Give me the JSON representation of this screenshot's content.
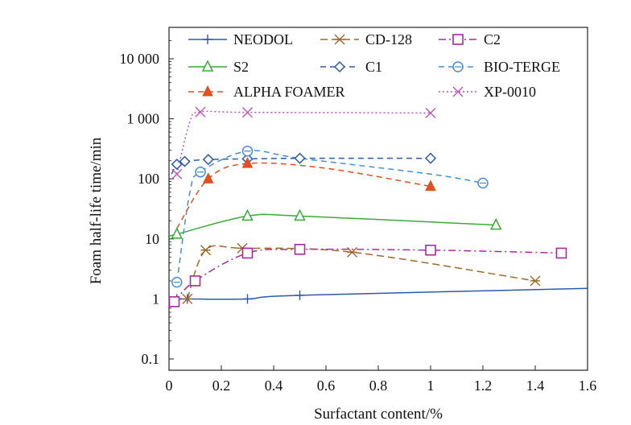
{
  "chart_data": {
    "type": "line",
    "title": "",
    "xlabel": "Surfactant content/%",
    "ylabel": "Foam half-life time/min",
    "xlim": [
      0,
      1.6
    ],
    "ylim": [
      0.1,
      30000
    ],
    "yscale": "log",
    "grid": false,
    "legend_position": "top",
    "x_ticks": [
      "0",
      "0.2",
      "0.4",
      "0.6",
      "0.8",
      "1",
      "1.2",
      "1.4",
      "1.6"
    ],
    "y_ticks": [
      "0.1",
      "1",
      "10",
      "100",
      "1 000",
      "10 000"
    ],
    "y_tick_values": [
      0.1,
      1,
      10,
      100,
      1000,
      10000
    ],
    "series": [
      {
        "name": "NEODOL",
        "color": "#2d5aa8",
        "dash": "solid",
        "marker": "plus",
        "x": [
          0.03,
          0.07,
          0.3,
          0.5
        ],
        "y": [
          1.0,
          1.0,
          1.0,
          1.15
        ],
        "curve_x": [
          0.03,
          0.07,
          0.3,
          0.5,
          1.6
        ],
        "curve_y": [
          1.0,
          1.0,
          1.0,
          1.15,
          1.5
        ]
      },
      {
        "name": "CD-128",
        "color": "#9a6a2c",
        "dash": "longdash",
        "marker": "asterisk",
        "x": [
          0.07,
          0.14,
          0.28,
          0.7,
          1.4
        ],
        "y": [
          1.0,
          6.5,
          7.0,
          6.0,
          2.0
        ],
        "curve_x": [
          0.07,
          0.14,
          0.28,
          0.7,
          1.4
        ],
        "curve_y": [
          1.0,
          6.5,
          7.0,
          6.0,
          2.0
        ]
      },
      {
        "name": "C2",
        "color": "#a52a9a",
        "dash": "dashdot",
        "marker": "square",
        "x": [
          0.02,
          0.1,
          0.3,
          0.5,
          1.0,
          1.5
        ],
        "y": [
          0.9,
          2.0,
          5.8,
          6.7,
          6.5,
          5.8
        ],
        "curve_x": [
          0.02,
          0.1,
          0.3,
          0.5,
          1.0,
          1.5
        ],
        "curve_y": [
          0.9,
          2.0,
          5.8,
          6.7,
          6.5,
          5.8
        ]
      },
      {
        "name": "S2",
        "color": "#3aaa3a",
        "dash": "solid",
        "marker": "triangle",
        "x": [
          0.03,
          0.3,
          0.5,
          1.25
        ],
        "y": [
          12,
          24,
          24,
          17
        ],
        "curve_x": [
          0.0,
          0.03,
          0.3,
          0.5,
          1.25
        ],
        "curve_y": [
          11,
          12,
          24,
          24,
          17
        ]
      },
      {
        "name": "C1",
        "color": "#2d5aa8",
        "dash": "dash",
        "marker": "diamond",
        "x": [
          0.03,
          0.06,
          0.15,
          0.3,
          0.5,
          1.0
        ],
        "y": [
          175,
          195,
          210,
          215,
          220,
          220
        ],
        "curve_x": [
          0.01,
          0.03,
          0.06,
          0.15,
          0.3,
          0.5,
          1.0
        ],
        "curve_y": [
          120,
          175,
          195,
          210,
          215,
          220,
          220
        ]
      },
      {
        "name": "BIO-TERGE",
        "color": "#4a8fd0",
        "dash": "dash",
        "marker": "circle",
        "x": [
          0.03,
          0.12,
          0.3,
          1.2
        ],
        "y": [
          1.9,
          130,
          290,
          85
        ],
        "curve_x": [
          0.03,
          0.08,
          0.12,
          0.3,
          0.5,
          1.0,
          1.2
        ],
        "curve_y": [
          1.9,
          60,
          130,
          290,
          220,
          120,
          85
        ]
      },
      {
        "name": "ALPHA FOAMER",
        "color": "#e05020",
        "dash": "dash",
        "marker": "filled-triangle",
        "x": [
          0.15,
          0.3,
          1.0
        ],
        "y": [
          100,
          180,
          75
        ],
        "curve_x": [
          0.03,
          0.15,
          0.3,
          0.6,
          1.0
        ],
        "curve_y": [
          15,
          100,
          180,
          150,
          75
        ]
      },
      {
        "name": "XP-0010",
        "color": "#bb55bb",
        "dash": "dot",
        "marker": "x",
        "x": [
          0.03,
          0.12,
          0.3,
          1.0
        ],
        "y": [
          120,
          1300,
          1280,
          1250
        ],
        "curve_x": [
          0.03,
          0.08,
          0.12,
          0.3,
          1.0
        ],
        "curve_y": [
          120,
          900,
          1300,
          1280,
          1250
        ]
      }
    ]
  }
}
